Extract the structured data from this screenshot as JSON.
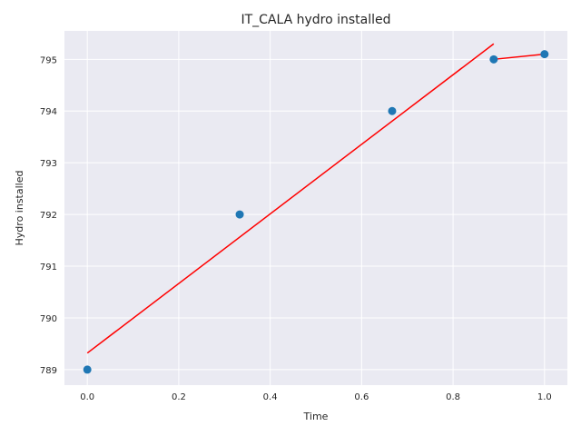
{
  "chart_data": {
    "type": "scatter",
    "title": "IT_CALA hydro installed",
    "xlabel": "Time",
    "ylabel": "Hydro installed",
    "xlim": [
      -0.05,
      1.05
    ],
    "ylim": [
      788.7,
      795.55
    ],
    "x_ticks": [
      "0.0",
      "0.2",
      "0.4",
      "0.6",
      "0.8",
      "1.0"
    ],
    "x_tick_values": [
      0.0,
      0.2,
      0.4,
      0.6,
      0.8,
      1.0
    ],
    "y_ticks": [
      "789",
      "790",
      "791",
      "792",
      "793",
      "794",
      "795"
    ],
    "y_tick_values": [
      789,
      790,
      791,
      792,
      793,
      794,
      795
    ],
    "grid": true,
    "background": "#eaeaf2",
    "grid_color": "#ffffff",
    "points": {
      "color": "#1f77b4",
      "x": [
        0.0,
        0.3333,
        0.6667,
        0.8889,
        1.0
      ],
      "y": [
        789.0,
        792.0,
        794.0,
        795.0,
        795.1
      ]
    },
    "fit_lines": [
      {
        "color": "#ff0000",
        "x": [
          0.0,
          0.8889
        ],
        "y": [
          789.32,
          795.3
        ]
      },
      {
        "color": "#ff0000",
        "x": [
          0.8889,
          1.0
        ],
        "y": [
          795.0,
          795.1
        ]
      }
    ]
  }
}
